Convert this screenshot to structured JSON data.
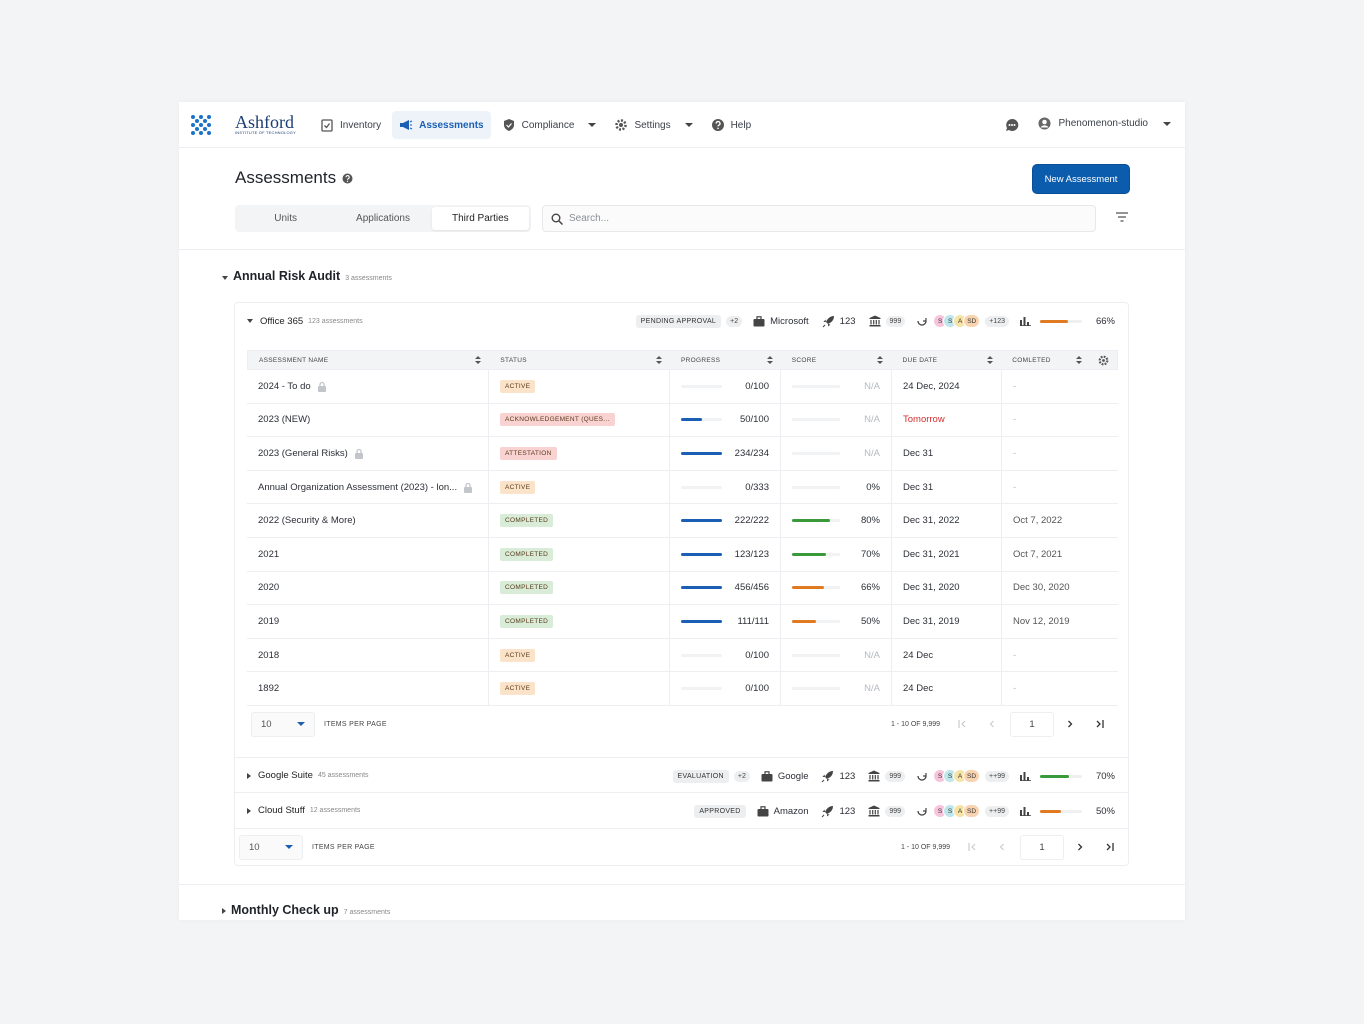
{
  "nav": {
    "brand": "Ashford",
    "brand_sub": "INSTITUTE OF TECHNOLOGY",
    "items": [
      "Inventory",
      "Assessments",
      "Compliance",
      "Settings",
      "Help"
    ],
    "user": "Phenomenon-studio"
  },
  "header": {
    "title": "Assessments",
    "button": "New Assessment",
    "tabs": [
      "Units",
      "Applications",
      "Third Parties"
    ],
    "search_placeholder": "Search..."
  },
  "groups": [
    {
      "title": "Annual Risk Audit",
      "count": "3 assessments",
      "vendors": [
        {
          "name": "Office 365",
          "count": "123 assessments",
          "status": "PENDING APPROVAL",
          "status_extra": "+2",
          "company": "Microsoft",
          "rocket": 123,
          "bank": 999,
          "avatars": [
            {
              "label": "S",
              "color": "#f6c5dc"
            },
            {
              "label": "S",
              "color": "#bfe6ea"
            },
            {
              "label": "A",
              "color": "#f6e3a6"
            },
            {
              "label": "SD",
              "color": "#f8d3b0"
            }
          ],
          "avatar_extra": "+123",
          "progress": 66,
          "progress_label": "66%",
          "progress_color": "#e07b22",
          "table": {
            "columns": [
              "ASSESSMENT NAME",
              "STATUS",
              "PROGRESS",
              "SCORE",
              "DUE DATE",
              "COMLETED"
            ],
            "rows": [
              {
                "name": "2024 - To do",
                "locked": true,
                "status": "ACTIVE",
                "status_color": "#fbe3c9",
                "progress": 0,
                "total": 100,
                "progress_label": "0/100",
                "score": null,
                "score_label": "N/A",
                "score_color": "#e07b22",
                "due": "24 Dec, 2024",
                "completed": "-"
              },
              {
                "name": "2023 (NEW)",
                "locked": false,
                "status": "ACKNOWLEDGEMENT (QUES...",
                "status_color": "#f9d2d2",
                "progress": 50,
                "total": 100,
                "progress_label": "50/100",
                "score": null,
                "score_label": "N/A",
                "score_color": "#e07b22",
                "due": "Tomorrow",
                "due_color": "#d32f2f",
                "completed": "-"
              },
              {
                "name": "2023 (General Risks)",
                "locked": true,
                "status": "ATTESTATION",
                "status_color": "#f9d2d2",
                "progress": 234,
                "total": 234,
                "progress_label": "234/234",
                "score": null,
                "score_label": "N/A",
                "score_color": "#e07b22",
                "due": "Dec 31",
                "completed": "-"
              },
              {
                "name": "Annual Organization Assessment (2023) - lon...",
                "locked": true,
                "status": "ACTIVE",
                "status_color": "#fbe3c9",
                "progress": 0,
                "total": 333,
                "progress_label": "0/333",
                "score": 0,
                "score_label": "0%",
                "score_color": "#e07b22",
                "due": "Dec 31",
                "completed": "-"
              },
              {
                "name": "2022 (Security & More)",
                "locked": false,
                "status": "COMPLETED",
                "status_color": "#d8ecd8",
                "progress": 222,
                "total": 222,
                "progress_label": "222/222",
                "score": 80,
                "score_label": "80%",
                "score_color": "#3a9a3a",
                "due": "Dec 31, 2022",
                "completed": "Oct 7, 2022"
              },
              {
                "name": "2021",
                "locked": false,
                "status": "COMPLETED",
                "status_color": "#d8ecd8",
                "progress": 123,
                "total": 123,
                "progress_label": "123/123",
                "score": 70,
                "score_label": "70%",
                "score_color": "#3a9a3a",
                "due": "Dec 31, 2021",
                "completed": "Oct 7, 2021"
              },
              {
                "name": "2020",
                "locked": false,
                "status": "COMPLETED",
                "status_color": "#d8ecd8",
                "progress": 456,
                "total": 456,
                "progress_label": "456/456",
                "score": 66,
                "score_label": "66%",
                "score_color": "#e07b22",
                "due": "Dec 31, 2020",
                "completed": "Dec 30, 2020"
              },
              {
                "name": "2019",
                "locked": false,
                "status": "COMPLETED",
                "status_color": "#d8ecd8",
                "progress": 111,
                "total": 111,
                "progress_label": "111/111",
                "score": 50,
                "score_label": "50%",
                "score_color": "#e07b22",
                "due": "Dec 31, 2019",
                "completed": "Nov 12, 2019"
              },
              {
                "name": "2018",
                "locked": false,
                "status": "ACTIVE",
                "status_color": "#fbe3c9",
                "progress": 0,
                "total": 100,
                "progress_label": "0/100",
                "score": null,
                "score_label": "N/A",
                "score_color": "#e07b22",
                "due": "24 Dec",
                "completed": "-"
              },
              {
                "name": "1892",
                "locked": false,
                "status": "ACTIVE",
                "status_color": "#fbe3c9",
                "progress": 0,
                "total": 100,
                "progress_label": "0/100",
                "score": null,
                "score_label": "N/A",
                "score_color": "#e07b22",
                "due": "24 Dec",
                "completed": "-"
              }
            ],
            "pagination": {
              "per_page": "10",
              "per_page_label": "ITEMS PER PAGE",
              "range": "1 - 10 OF 9,999",
              "page": "1"
            }
          }
        },
        {
          "name": "Google Suite",
          "count": "45 assessments",
          "status": "EVALUATION",
          "status_extra": "+2",
          "company": "Google",
          "rocket": 123,
          "bank": 999,
          "avatars": [
            {
              "label": "S",
              "color": "#f6c5dc"
            },
            {
              "label": "S",
              "color": "#bfe6ea"
            },
            {
              "label": "A",
              "color": "#f6e3a6"
            },
            {
              "label": "SD",
              "color": "#f8d3b0"
            }
          ],
          "avatar_extra": "++99",
          "progress": 70,
          "progress_label": "70%",
          "progress_color": "#3a9a3a"
        },
        {
          "name": "Cloud Stuff",
          "count": "12 assessments",
          "status": "APPROVED",
          "company": "Amazon",
          "rocket": 123,
          "bank": 999,
          "avatars": [
            {
              "label": "S",
              "color": "#f6c5dc"
            },
            {
              "label": "S",
              "color": "#bfe6ea"
            },
            {
              "label": "A",
              "color": "#f6e3a6"
            },
            {
              "label": "SD",
              "color": "#f8d3b0"
            }
          ],
          "avatar_extra": "++99",
          "progress": 50,
          "progress_label": "50%",
          "progress_color": "#e07b22"
        }
      ],
      "pagination": {
        "per_page": "10",
        "per_page_label": "ITEMS PER PAGE",
        "range": "1 - 10 OF 9,999",
        "page": "1"
      }
    },
    {
      "title": "Monthly Check up",
      "count": "7 assessments"
    }
  ]
}
